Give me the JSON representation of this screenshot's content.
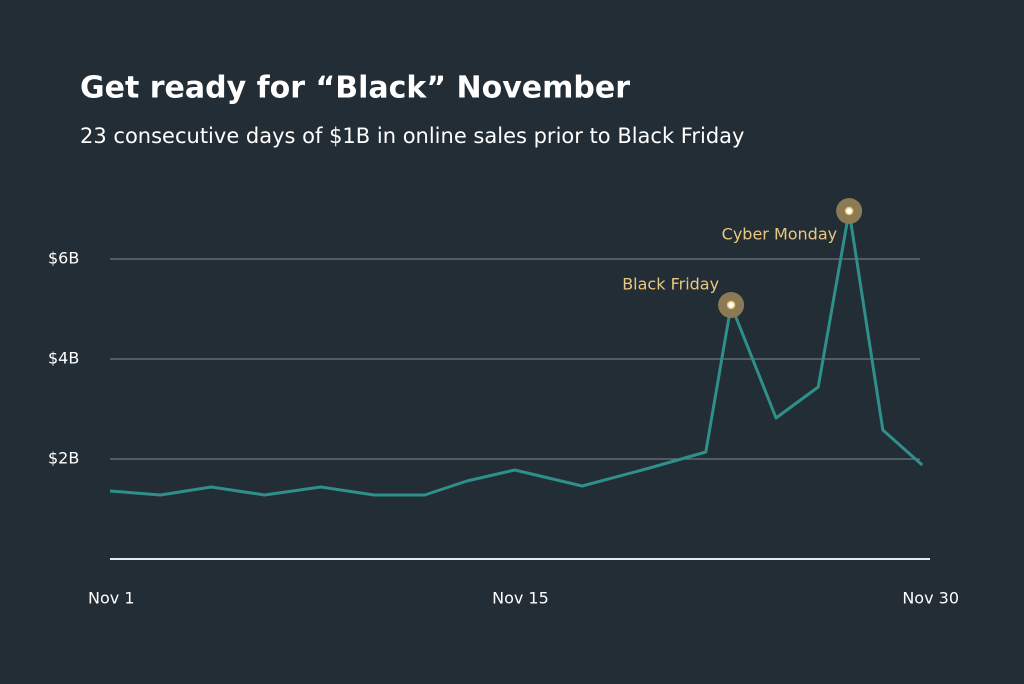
{
  "chart_data": {
    "type": "line",
    "title": "Get ready for “Black” November",
    "subtitle": "23 consecutive days of $1B in online sales prior to Black Friday",
    "x": [
      1.0,
      2.8,
      4.6,
      6.5,
      8.5,
      10.4,
      12.2,
      13.7,
      15.4,
      17.8,
      20.2,
      22.2,
      23.1,
      24.7,
      26.2,
      27.3,
      28.5,
      29.9
    ],
    "series": [
      {
        "color": "#2f8f8a",
        "values": [
          1.36,
          1.28,
          1.44,
          1.28,
          1.44,
          1.28,
          1.28,
          1.56,
          1.78,
          1.46,
          1.82,
          2.14,
          5.08,
          2.82,
          3.44,
          6.96,
          2.58,
          1.88
        ]
      }
    ],
    "xlim": [
      1,
      30
    ],
    "xticks": [
      {
        "value": 1,
        "label": "Nov 1"
      },
      {
        "value": 15,
        "label": "Nov 15"
      },
      {
        "value": 30,
        "label": "Nov 30"
      }
    ],
    "ylim": [
      0,
      8
    ],
    "yticks": [
      {
        "value": 2,
        "label": "$2B"
      },
      {
        "value": 4,
        "label": "$4B"
      },
      {
        "value": 6,
        "label": "$6B"
      }
    ],
    "grid": true,
    "annotations": [
      {
        "label": "Black Friday",
        "x": 23.1,
        "y": 5.08,
        "color": "#e9c77f"
      },
      {
        "label": "Cyber Monday",
        "x": 27.3,
        "y": 6.96,
        "color": "#e9c77f"
      }
    ]
  }
}
